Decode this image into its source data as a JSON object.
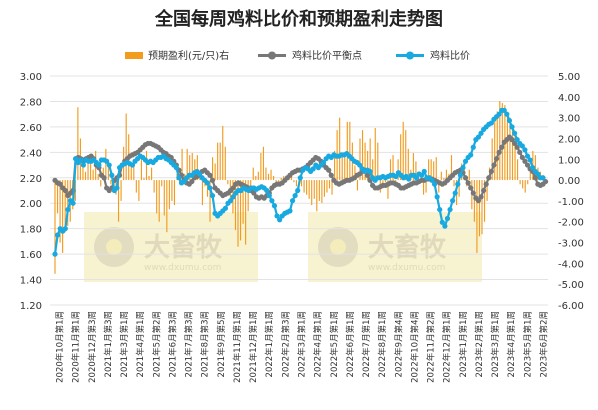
{
  "chart_data": {
    "type": "bar+line",
    "title": "全国每周鸡料比价和预期盈利走势图",
    "watermark": {
      "brand": "大畜牧",
      "url": "www.dxumu.com"
    },
    "legend": [
      {
        "name": "预期盈利(元/只)右",
        "color": "#f29b1d",
        "kind": "bar"
      },
      {
        "name": "鸡料比价平衡点",
        "color": "#777777",
        "kind": "line"
      },
      {
        "name": "鸡料比价",
        "color": "#19a9e1",
        "kind": "line"
      }
    ],
    "y_left": {
      "min": 1.2,
      "max": 3.0,
      "ticks": [
        "3.00",
        "2.80",
        "2.60",
        "2.40",
        "2.20",
        "2.00",
        "1.80",
        "1.60",
        "1.40",
        "1.20"
      ]
    },
    "y_right": {
      "min": -6,
      "max": 5,
      "ticks": [
        "5.00",
        "4.00",
        "3.00",
        "2.00",
        "1.00",
        "0.00",
        "-1.00",
        "-2.00",
        "-3.00",
        "-4.00",
        "-5.00",
        "-6.00"
      ]
    },
    "x_labels": [
      "2020年10月第1周",
      "2020年11月第1周",
      "2020年12月第3周",
      "2021年1月第3周",
      "2021年3月第1周",
      "2021年4月第1周",
      "2021年5月第2周",
      "2021年6月第3周",
      "2021年7月第3周",
      "2021年8月第3周",
      "2021年9月第5周",
      "2021年11月第1周",
      "2021年12月第1周",
      "2022年1月第1周",
      "2022年2月第3周",
      "2022年3月第1周",
      "2022年4月第1周",
      "2022年5月第1周",
      "2022年6月第1周",
      "2022年7月第1周",
      "2022年8月第1周",
      "2022年9月第4周",
      "2022年10月第4周",
      "2022年11月第2周",
      "2022年12月第1周",
      "2023年1月第1周",
      "2023年2月第1周",
      "2023年3月第1周",
      "2023年4月第1周",
      "2023年5月第1周",
      "2023年6月第2周"
    ],
    "profit": [
      -4.5,
      -1.6,
      -3.0,
      -3.5,
      -2.5,
      -2.2,
      -2.0,
      -1.4,
      -1.0,
      3.5,
      2.0,
      0.6,
      0.4,
      1.2,
      0.8,
      0.5,
      1.4,
      0.3,
      -0.3,
      0.6,
      1.5,
      0.8,
      -0.2,
      -0.4,
      -0.7,
      -2.0,
      -1.0,
      1.6,
      3.2,
      2.2,
      0.8,
      1.0,
      -0.6,
      -1.0,
      1.1,
      0.1,
      1.4,
      0.2,
      0.6,
      -0.6,
      -1.6,
      -2.0,
      -0.3,
      -1.7,
      -2.5,
      -1.4,
      -1.0,
      -1.2,
      0.3,
      -0.1,
      1.5,
      0.3,
      1.5,
      1.2,
      1.3,
      1.0,
      1.2,
      0.1,
      -1.2,
      -0.3,
      -0.8,
      -2.0,
      1.1,
      0.8,
      1.8,
      1.8,
      2.6,
      1.6,
      -0.2,
      -1.0,
      -1.6,
      -2.4,
      -3.2,
      -2.9,
      -2.1,
      -3.1,
      -1.5,
      -0.3,
      0.6,
      0.2,
      0.4,
      1.3,
      1.6,
      0.6,
      0.3,
      0.5,
      0.2,
      -0.3,
      -0.2,
      0.1,
      0.2,
      -0.1,
      0.2,
      0.3,
      -0.1,
      -0.3,
      -0.4,
      -0.3,
      -0.6,
      -0.7,
      -0.9,
      -1.2,
      -0.9,
      -1.5,
      -1.0,
      -1.1,
      -0.8,
      -0.6,
      -0.4,
      -0.7,
      1.4,
      2.4,
      3.0,
      1.2,
      1.3,
      2.8,
      2.8,
      1.8,
      0.7,
      -0.5,
      2.0,
      2.4,
      1.8,
      1.4,
      2.0,
      1.0,
      2.5,
      1.8,
      -0.6,
      -0.4,
      -0.1,
      -0.9,
      1.0,
      1.2,
      -0.3,
      1.0,
      2.2,
      2.8,
      2.4,
      1.5,
      0.5,
      1.3,
      0.9,
      0.4,
      -0.1,
      -0.7,
      -0.6,
      1.0,
      1.0,
      0.9,
      1.1,
      -0.6,
      0.4,
      0.1,
      0.5,
      0.3,
      1.2,
      -0.3,
      -1.2,
      -0.8,
      0.8,
      0.6,
      -0.3,
      0.5,
      -1.4,
      -2.0,
      -3.5,
      -2.7,
      -2.6,
      -2.0,
      -1.0,
      0.6,
      2.0,
      2.8,
      3.3,
      3.8,
      3.7,
      3.6,
      3.2,
      3.0,
      2.6,
      2.2,
      1.0,
      -0.2,
      -0.4,
      -0.6,
      -0.2,
      0.4,
      1.4,
      1.2,
      0.6,
      0.4,
      0.0
    ],
    "balance": [
      2.18,
      2.16,
      2.15,
      2.12,
      2.1,
      2.06,
      2.08,
      2.1,
      2.35,
      2.36,
      2.35,
      2.34,
      2.35,
      2.36,
      2.37,
      2.35,
      2.3,
      2.28,
      2.22,
      2.2,
      2.12,
      2.1,
      2.12,
      2.18,
      2.2,
      2.22,
      2.3,
      2.33,
      2.35,
      2.37,
      2.38,
      2.39,
      2.4,
      2.42,
      2.44,
      2.46,
      2.47,
      2.47,
      2.46,
      2.45,
      2.44,
      2.42,
      2.4,
      2.39,
      2.37,
      2.36,
      2.33,
      2.3,
      2.26,
      2.22,
      2.18,
      2.16,
      2.15,
      2.17,
      2.2,
      2.21,
      2.22,
      2.25,
      2.26,
      2.24,
      2.22,
      2.18,
      2.12,
      2.1,
      2.08,
      2.06,
      2.07,
      2.08,
      2.1,
      2.12,
      2.15,
      2.16,
      2.15,
      2.14,
      2.13,
      2.12,
      2.1,
      2.08,
      2.05,
      2.04,
      2.05,
      2.04,
      2.06,
      2.08,
      2.12,
      2.14,
      2.15,
      2.15,
      2.16,
      2.18,
      2.2,
      2.22,
      2.24,
      2.25,
      2.26,
      2.26,
      2.27,
      2.28,
      2.3,
      2.32,
      2.34,
      2.36,
      2.35,
      2.33,
      2.3,
      2.28,
      2.26,
      2.22,
      2.18,
      2.16,
      2.15,
      2.16,
      2.17,
      2.18,
      2.18,
      2.19,
      2.2,
      2.22,
      2.23,
      2.25,
      2.26,
      2.22,
      2.18,
      2.14,
      2.12,
      2.12,
      2.13,
      2.14,
      2.14,
      2.15,
      2.16,
      2.16,
      2.15,
      2.14,
      2.12,
      2.12,
      2.13,
      2.14,
      2.15,
      2.16,
      2.16,
      2.17,
      2.18,
      2.18,
      2.19,
      2.19,
      2.19,
      2.18,
      2.17,
      2.16,
      2.15,
      2.16,
      2.18,
      2.2,
      2.22,
      2.24,
      2.25,
      2.26,
      2.24,
      2.2,
      2.16,
      2.12,
      2.08,
      2.04,
      2.02,
      2.05,
      2.1,
      2.15,
      2.2,
      2.25,
      2.3,
      2.35,
      2.4,
      2.44,
      2.48,
      2.5,
      2.52,
      2.5,
      2.47,
      2.44,
      2.4,
      2.36,
      2.33,
      2.3,
      2.27,
      2.25,
      2.2,
      2.15,
      2.14,
      2.15,
      2.17
    ],
    "ratio": [
      1.6,
      1.75,
      1.8,
      1.78,
      1.8,
      1.95,
      2.02,
      2.0,
      2.35,
      2.32,
      2.34,
      2.3,
      2.34,
      2.33,
      2.33,
      2.34,
      2.32,
      2.3,
      2.34,
      2.34,
      2.33,
      2.3,
      2.22,
      2.1,
      2.12,
      2.28,
      2.3,
      2.31,
      2.32,
      2.31,
      2.3,
      2.33,
      2.35,
      2.37,
      2.36,
      2.34,
      2.32,
      2.33,
      2.32,
      2.34,
      2.36,
      2.36,
      2.37,
      2.35,
      2.34,
      2.32,
      2.3,
      2.28,
      2.2,
      2.16,
      2.17,
      2.2,
      2.22,
      2.22,
      2.24,
      2.25,
      2.23,
      2.2,
      2.18,
      2.16,
      2.12,
      2.06,
      1.92,
      1.9,
      1.92,
      1.94,
      1.96,
      2.0,
      2.02,
      2.05,
      2.08,
      2.1,
      2.1,
      2.12,
      2.11,
      2.1,
      2.12,
      2.12,
      2.11,
      2.12,
      2.13,
      2.12,
      2.1,
      2.06,
      2.02,
      1.98,
      1.9,
      1.87,
      1.9,
      1.92,
      1.93,
      1.94,
      2.02,
      2.06,
      2.1,
      2.2,
      2.26,
      2.28,
      2.27,
      2.25,
      2.27,
      2.3,
      2.28,
      2.3,
      2.32,
      2.35,
      2.37,
      2.36,
      2.38,
      2.37,
      2.37,
      2.38,
      2.38,
      2.39,
      2.37,
      2.35,
      2.33,
      2.32,
      2.3,
      2.27,
      2.25,
      2.26,
      2.25,
      2.2,
      2.18,
      2.2,
      2.2,
      2.21,
      2.2,
      2.21,
      2.22,
      2.22,
      2.21,
      2.24,
      2.22,
      2.2,
      2.21,
      2.19,
      2.22,
      2.22,
      2.2,
      2.23,
      2.22,
      2.25,
      2.2,
      2.2,
      2.18,
      2.15,
      2.05,
      1.95,
      1.85,
      1.82,
      1.88,
      1.95,
      2.02,
      2.08,
      2.15,
      2.22,
      2.28,
      2.33,
      2.36,
      2.38,
      2.44,
      2.5,
      2.52,
      2.55,
      2.58,
      2.6,
      2.62,
      2.63,
      2.66,
      2.68,
      2.7,
      2.73,
      2.73,
      2.7,
      2.65,
      2.6,
      2.55,
      2.5,
      2.47,
      2.45,
      2.42,
      2.37,
      2.34,
      2.28,
      2.25,
      2.23,
      2.2,
      2.2
    ]
  }
}
